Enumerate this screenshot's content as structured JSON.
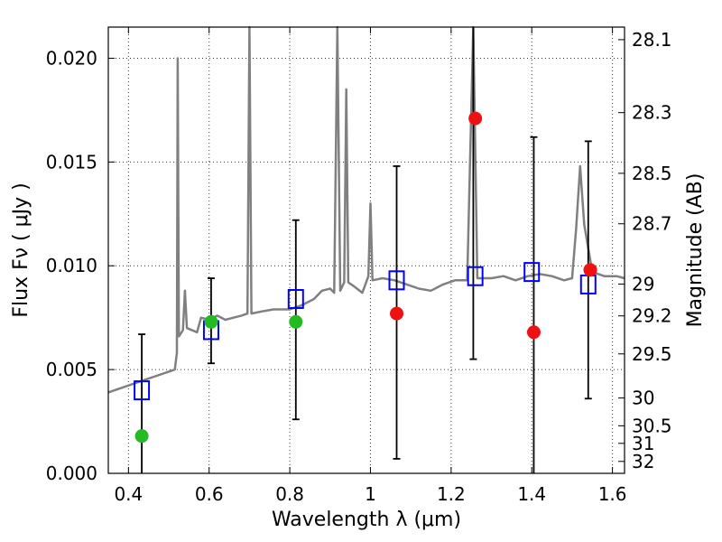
{
  "chart_data": {
    "type": "scatter",
    "title": "",
    "xlabel": "Wavelength  λ (μm)",
    "ylabel": "Flux  Fν  ( μJy )",
    "ylabel_right": "Magnitude (AB)",
    "xlim": [
      0.35,
      1.63
    ],
    "ylim": [
      0.0,
      0.0215
    ],
    "x_ticks": [
      0.4,
      0.6,
      0.8,
      1.0,
      1.2,
      1.4,
      1.6
    ],
    "x_tick_labels": [
      "0.4",
      "0.6",
      "0.8",
      "1",
      "1.2",
      "1.4",
      "1.6"
    ],
    "y_ticks": [
      0.0,
      0.005,
      0.01,
      0.015,
      0.02
    ],
    "y_tick_labels": [
      "0.000",
      "0.005",
      "0.010",
      "0.015",
      "0.020"
    ],
    "right_ticks": [
      28.1,
      28.3,
      28.5,
      28.7,
      29,
      29.2,
      29.5,
      30,
      30.5,
      31,
      32
    ],
    "right_tick_labels": [
      "28.1",
      "28.3",
      "28.5",
      "28.7",
      "29",
      "29.2",
      "29.5",
      "30",
      "30.5",
      "31",
      "32"
    ],
    "grid": true,
    "colors": {
      "model": "#808080",
      "squares": "#0000ff",
      "green": "#22bb22",
      "red": "#ee1111",
      "errorbar": "#000000"
    },
    "series": [
      {
        "type": "line",
        "points": [
          [
            0.35,
            0.0039
          ],
          [
            0.38,
            0.0041
          ],
          [
            0.41,
            0.0043
          ],
          [
            0.44,
            0.0045
          ],
          [
            0.47,
            0.0047
          ],
          [
            0.5,
            0.0049
          ],
          [
            0.515,
            0.005
          ],
          [
            0.52,
            0.0058
          ],
          [
            0.522,
            0.02
          ],
          [
            0.525,
            0.0066
          ],
          [
            0.535,
            0.0069
          ],
          [
            0.54,
            0.0088
          ],
          [
            0.545,
            0.007
          ],
          [
            0.57,
            0.0068
          ],
          [
            0.58,
            0.0075
          ],
          [
            0.6,
            0.0074
          ],
          [
            0.62,
            0.0076
          ],
          [
            0.64,
            0.0074
          ],
          [
            0.66,
            0.0075
          ],
          [
            0.68,
            0.0076
          ],
          [
            0.695,
            0.0077
          ],
          [
            0.7,
            0.0215
          ],
          [
            0.705,
            0.0077
          ],
          [
            0.73,
            0.0078
          ],
          [
            0.76,
            0.0079
          ],
          [
            0.8,
            0.0079
          ],
          [
            0.83,
            0.0081
          ],
          [
            0.86,
            0.0084
          ],
          [
            0.88,
            0.0088
          ],
          [
            0.9,
            0.0089
          ],
          [
            0.91,
            0.0087
          ],
          [
            0.918,
            0.0215
          ],
          [
            0.925,
            0.0088
          ],
          [
            0.935,
            0.0092
          ],
          [
            0.94,
            0.0185
          ],
          [
            0.945,
            0.0092
          ],
          [
            0.96,
            0.009
          ],
          [
            0.98,
            0.0087
          ],
          [
            0.995,
            0.0095
          ],
          [
            1.0,
            0.013
          ],
          [
            1.005,
            0.0093
          ],
          [
            1.03,
            0.0094
          ],
          [
            1.06,
            0.0093
          ],
          [
            1.09,
            0.0091
          ],
          [
            1.12,
            0.0089
          ],
          [
            1.15,
            0.0088
          ],
          [
            1.18,
            0.0091
          ],
          [
            1.21,
            0.0093
          ],
          [
            1.24,
            0.0093
          ],
          [
            1.255,
            0.0215
          ],
          [
            1.265,
            0.0094
          ],
          [
            1.3,
            0.0094
          ],
          [
            1.33,
            0.0095
          ],
          [
            1.36,
            0.0093
          ],
          [
            1.39,
            0.0095
          ],
          [
            1.42,
            0.0096
          ],
          [
            1.45,
            0.0095
          ],
          [
            1.48,
            0.0093
          ],
          [
            1.5,
            0.0094
          ],
          [
            1.51,
            0.0118
          ],
          [
            1.52,
            0.0148
          ],
          [
            1.53,
            0.012
          ],
          [
            1.55,
            0.0097
          ],
          [
            1.58,
            0.0095
          ],
          [
            1.61,
            0.0095
          ],
          [
            1.63,
            0.0094
          ]
        ]
      },
      {
        "type": "errorbar",
        "points": [
          {
            "x": 0.433,
            "low": 0.0,
            "high": 0.0067
          },
          {
            "x": 0.605,
            "low": 0.0053,
            "high": 0.0094
          },
          {
            "x": 0.815,
            "low": 0.0026,
            "high": 0.0122
          },
          {
            "x": 1.065,
            "low": 0.0007,
            "high": 0.0148
          },
          {
            "x": 1.255,
            "low": 0.0055,
            "high": 0.0215
          },
          {
            "x": 1.405,
            "low": 0.0,
            "high": 0.0162
          },
          {
            "x": 1.54,
            "low": 0.0036,
            "high": 0.016
          }
        ]
      },
      {
        "type": "scatter",
        "marker": "open-square",
        "points": [
          [
            0.433,
            0.004
          ],
          [
            0.605,
            0.0069
          ],
          [
            0.815,
            0.0084
          ],
          [
            1.065,
            0.0093
          ],
          [
            1.26,
            0.0095
          ],
          [
            1.4,
            0.0097
          ],
          [
            1.54,
            0.0091
          ]
        ]
      },
      {
        "type": "scatter",
        "marker": "green-circle",
        "points": [
          [
            0.433,
            0.0018
          ],
          [
            0.605,
            0.0073
          ],
          [
            0.815,
            0.0073
          ]
        ]
      },
      {
        "type": "scatter",
        "marker": "red-circle",
        "points": [
          [
            1.065,
            0.0077
          ],
          [
            1.26,
            0.0171
          ],
          [
            1.405,
            0.0068
          ],
          [
            1.545,
            0.0098
          ]
        ]
      }
    ]
  }
}
